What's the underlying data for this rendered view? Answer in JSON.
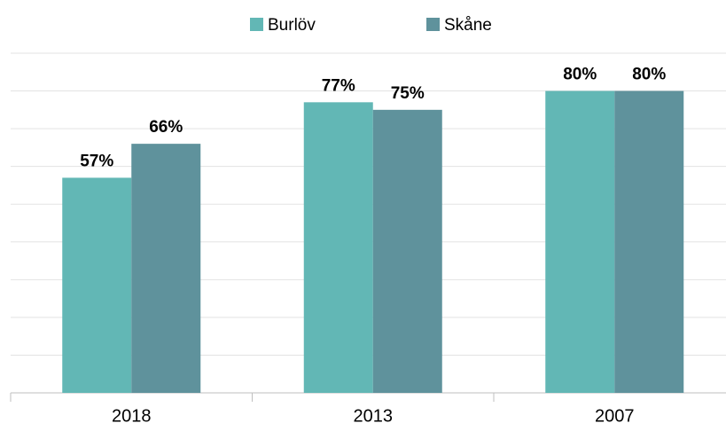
{
  "chart_data": {
    "type": "bar",
    "categories": [
      "2018",
      "2013",
      "2007"
    ],
    "series": [
      {
        "name": "Burlöv",
        "color": "#62b7b5",
        "values": [
          57,
          77,
          80
        ],
        "value_labels": [
          "57%",
          "77%",
          "80%"
        ]
      },
      {
        "name": "Skåne",
        "color": "#5f929c",
        "values": [
          66,
          75,
          80
        ],
        "value_labels": [
          "66%",
          "75%",
          "80%"
        ]
      }
    ],
    "ylim": [
      0,
      90
    ],
    "yticks": [
      0,
      10,
      20,
      30,
      40,
      50,
      60,
      70,
      80,
      90
    ],
    "grid": true,
    "legend": "top"
  }
}
